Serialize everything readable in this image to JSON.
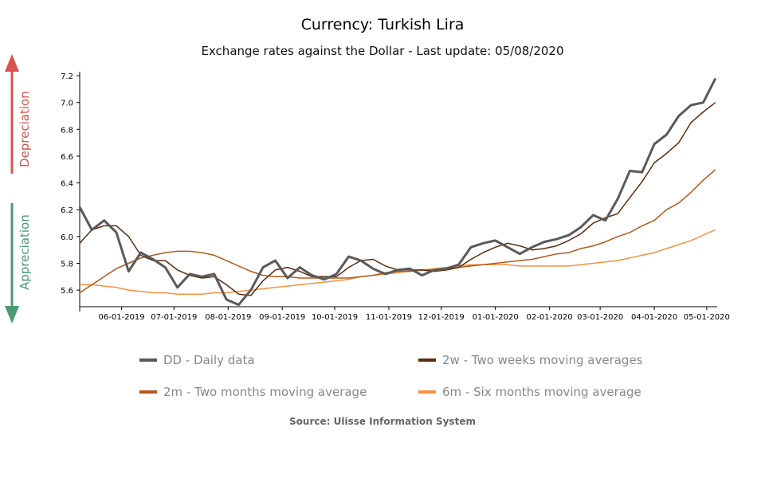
{
  "title": "Currency: Turkish Lira",
  "subtitle": "Exchange rates against the Dollar - Last update: 05/08/2020",
  "arrows": {
    "up_label": "Depreciation",
    "down_label": "Appreciation",
    "up_color": "#d9534f",
    "down_color": "#4a9a70"
  },
  "source": "Source: Ulisse Information System",
  "chart_data": {
    "type": "line",
    "title": "Currency: Turkish Lira",
    "xlabel": "",
    "ylabel": "",
    "xlim": [
      "2019-05-08",
      "2020-05-07"
    ],
    "ylim": [
      5.476,
      7.23
    ],
    "yticks": [
      "5.6",
      "5.8",
      "6.0",
      "6.2",
      "6.4",
      "6.6",
      "6.8",
      "7.0",
      "7.2"
    ],
    "xticks": [
      "06-01-2019",
      "07-01-2019",
      "08-01-2019",
      "09-01-2019",
      "10-01-2019",
      "11-01-2019",
      "12-01-2019",
      "01-01-2020",
      "02-01-2020",
      "03-01-2020",
      "04-01-2020",
      "05-01-2020"
    ],
    "grid": false,
    "legend_placement": "bottom",
    "x": [
      "2019-05-08",
      "2019-05-15",
      "2019-05-22",
      "2019-05-29",
      "2019-06-05",
      "2019-06-12",
      "2019-06-19",
      "2019-06-26",
      "2019-07-03",
      "2019-07-10",
      "2019-07-17",
      "2019-07-24",
      "2019-07-31",
      "2019-08-07",
      "2019-08-14",
      "2019-08-21",
      "2019-08-28",
      "2019-09-04",
      "2019-09-11",
      "2019-09-18",
      "2019-09-25",
      "2019-10-02",
      "2019-10-09",
      "2019-10-16",
      "2019-10-23",
      "2019-10-30",
      "2019-11-06",
      "2019-11-13",
      "2019-11-20",
      "2019-11-27",
      "2019-12-04",
      "2019-12-11",
      "2019-12-18",
      "2019-12-25",
      "2020-01-01",
      "2020-01-08",
      "2020-01-15",
      "2020-01-22",
      "2020-01-29",
      "2020-02-05",
      "2020-02-12",
      "2020-02-19",
      "2020-02-26",
      "2020-03-04",
      "2020-03-11",
      "2020-03-18",
      "2020-03-25",
      "2020-04-01",
      "2020-04-08",
      "2020-04-15",
      "2020-04-22",
      "2020-04-29",
      "2020-05-06"
    ],
    "series": [
      {
        "name": "DD - Daily data",
        "color": "#5a5a5a",
        "values": [
          6.22,
          6.05,
          6.12,
          6.03,
          5.74,
          5.88,
          5.83,
          5.77,
          5.62,
          5.72,
          5.7,
          5.72,
          5.53,
          5.49,
          5.6,
          5.77,
          5.82,
          5.69,
          5.77,
          5.71,
          5.68,
          5.72,
          5.85,
          5.82,
          5.76,
          5.72,
          5.75,
          5.76,
          5.71,
          5.75,
          5.76,
          5.79,
          5.92,
          5.95,
          5.97,
          5.92,
          5.87,
          5.92,
          5.96,
          5.98,
          6.01,
          6.07,
          6.16,
          6.12,
          6.28,
          6.49,
          6.48,
          6.69,
          6.76,
          6.9,
          6.98,
          7.0,
          7.18
        ]
      },
      {
        "name": "2w - Two weeks moving averages",
        "color": "#5a2d0c",
        "values": [
          5.95,
          6.05,
          6.08,
          6.08,
          6.0,
          5.86,
          5.82,
          5.82,
          5.75,
          5.71,
          5.69,
          5.7,
          5.64,
          5.57,
          5.56,
          5.67,
          5.75,
          5.77,
          5.74,
          5.7,
          5.7,
          5.7,
          5.77,
          5.82,
          5.83,
          5.78,
          5.75,
          5.75,
          5.75,
          5.74,
          5.75,
          5.77,
          5.83,
          5.88,
          5.92,
          5.95,
          5.93,
          5.9,
          5.91,
          5.93,
          5.97,
          6.02,
          6.1,
          6.14,
          6.17,
          6.29,
          6.41,
          6.55,
          6.62,
          6.7,
          6.85,
          6.93,
          7.0
        ]
      },
      {
        "name": "2m - Two months moving average",
        "color": "#b5581a",
        "values": [
          5.58,
          5.64,
          5.7,
          5.76,
          5.8,
          5.84,
          5.86,
          5.88,
          5.89,
          5.89,
          5.88,
          5.86,
          5.82,
          5.78,
          5.74,
          5.71,
          5.7,
          5.7,
          5.69,
          5.69,
          5.69,
          5.69,
          5.69,
          5.7,
          5.71,
          5.73,
          5.74,
          5.74,
          5.75,
          5.75,
          5.76,
          5.77,
          5.78,
          5.79,
          5.8,
          5.81,
          5.82,
          5.83,
          5.85,
          5.87,
          5.88,
          5.91,
          5.93,
          5.96,
          6.0,
          6.03,
          6.08,
          6.12,
          6.2,
          6.25,
          6.33,
          6.42,
          6.5
        ]
      },
      {
        "name": "6m - Six months moving average",
        "color": "#f5913e",
        "values": [
          5.64,
          5.64,
          5.63,
          5.62,
          5.6,
          5.59,
          5.58,
          5.58,
          5.57,
          5.57,
          5.57,
          5.58,
          5.58,
          5.59,
          5.6,
          5.61,
          5.62,
          5.63,
          5.64,
          5.65,
          5.66,
          5.67,
          5.68,
          5.7,
          5.71,
          5.72,
          5.73,
          5.74,
          5.75,
          5.76,
          5.77,
          5.78,
          5.79,
          5.79,
          5.79,
          5.79,
          5.78,
          5.78,
          5.78,
          5.78,
          5.78,
          5.79,
          5.8,
          5.81,
          5.82,
          5.84,
          5.86,
          5.88,
          5.91,
          5.94,
          5.97,
          6.01,
          6.05
        ]
      }
    ]
  }
}
